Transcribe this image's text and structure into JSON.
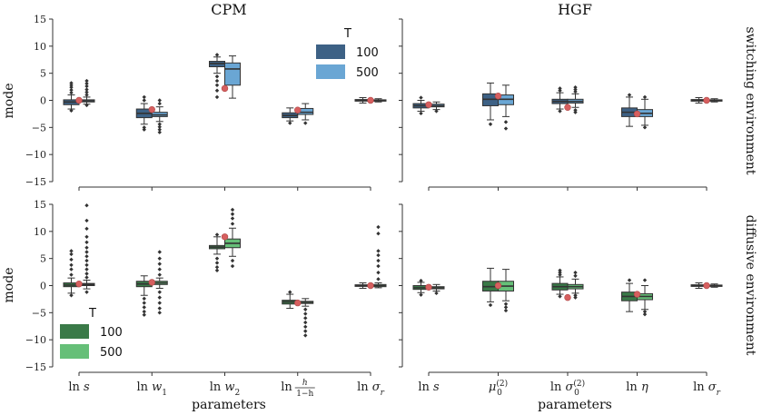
{
  "colors": {
    "switching": {
      "100": "#3d6185",
      "500": "#6aa6d4"
    },
    "diffusive": {
      "100": "#3a7a48",
      "500": "#66bf78"
    },
    "true_value": "#d65f5f",
    "line": "#333333"
  },
  "chart_data": {
    "type": "box",
    "ylabel": "mode",
    "yticks": [
      -15,
      -10,
      -5,
      0,
      5,
      10,
      15
    ],
    "ylim": [
      -15,
      15
    ],
    "xlabel": "parameters",
    "legend_title": "T",
    "legend_labels": [
      "100",
      "500"
    ],
    "row_labels": [
      "switching environment",
      "diffusive environment"
    ],
    "columns": [
      {
        "title": "CPM",
        "params": [
          {
            "label": "ln s"
          },
          {
            "label": "ln w1"
          },
          {
            "label": "ln w2"
          },
          {
            "label": "ln h/(1−h)"
          },
          {
            "label": "ln σr"
          }
        ]
      },
      {
        "title": "HGF",
        "params": [
          {
            "label": "ln s"
          },
          {
            "label": "μ0(2)"
          },
          {
            "label": "ln σ0(2)"
          },
          {
            "label": "ln η"
          },
          {
            "label": "ln σr"
          }
        ]
      }
    ],
    "panels": [
      {
        "row": "switching environment",
        "model": "CPM",
        "palette": "switching",
        "legend": "top-right",
        "groups": [
          {
            "param": "ln s",
            "true": 0,
            "boxes": [
              {
                "T": "100",
                "q1": -0.8,
                "median": -0.3,
                "q3": 0.1,
                "lo": -1.6,
                "hi": 1.0,
                "outliers": [
                  1.4,
                  1.9,
                  2.4,
                  2.8,
                  3.2,
                  -1.9
                ]
              },
              {
                "T": "500",
                "q1": -0.3,
                "median": -0.1,
                "q3": 0.1,
                "lo": -0.7,
                "hi": 0.6,
                "outliers": [
                  1.0,
                  1.5,
                  2.0,
                  2.6,
                  3.1,
                  3.6,
                  -0.9
                ]
              }
            ]
          },
          {
            "param": "ln w1",
            "true": -1.7,
            "boxes": [
              {
                "T": "100",
                "q1": -3.2,
                "median": -2.4,
                "q3": -1.6,
                "lo": -4.4,
                "hi": -0.6,
                "outliers": [
                  -5.0,
                  -5.4,
                  0.0,
                  0.6
                ]
              },
              {
                "T": "500",
                "q1": -3.0,
                "median": -2.7,
                "q3": -2.2,
                "lo": -3.9,
                "hi": -1.2,
                "outliers": [
                  -4.4,
                  -4.9,
                  -5.4,
                  -5.9,
                  -0.6,
                  0.0
                ]
              }
            ]
          },
          {
            "param": "ln w2",
            "true": 2.2,
            "boxes": [
              {
                "T": "100",
                "q1": 6.2,
                "median": 6.8,
                "q3": 7.2,
                "lo": 5.0,
                "hi": 8.0,
                "outliers": [
                  4.4,
                  3.6,
                  2.8,
                  1.8,
                  0.6,
                  8.4
                ]
              },
              {
                "T": "500",
                "q1": 2.8,
                "median": 5.8,
                "q3": 6.9,
                "lo": 0.4,
                "hi": 8.2,
                "outliers": []
              }
            ]
          },
          {
            "param": "ln h/(1−h)",
            "true": -1.8,
            "boxes": [
              {
                "T": "100",
                "q1": -3.2,
                "median": -2.8,
                "q3": -2.3,
                "lo": -3.8,
                "hi": -1.4,
                "outliers": [
                  -4.2
                ]
              },
              {
                "T": "500",
                "q1": -2.6,
                "median": -2.2,
                "q3": -1.5,
                "lo": -3.6,
                "hi": -0.6,
                "outliers": [
                  -4.2
                ]
              }
            ]
          },
          {
            "param": "ln σr",
            "true": 0,
            "boxes": [
              {
                "T": "100",
                "q1": -0.15,
                "median": 0.0,
                "q3": 0.15,
                "lo": -0.5,
                "hi": 0.5,
                "outliers": []
              },
              {
                "T": "500",
                "q1": -0.1,
                "median": 0.0,
                "q3": 0.1,
                "lo": -0.3,
                "hi": 0.3,
                "outliers": []
              }
            ]
          }
        ]
      },
      {
        "row": "switching environment",
        "model": "HGF",
        "palette": "switching",
        "legend": "none",
        "groups": [
          {
            "param": "ln s",
            "true": -0.8,
            "boxes": [
              {
                "T": "100",
                "q1": -1.4,
                "median": -1.0,
                "q3": -0.6,
                "lo": -2.0,
                "hi": 0.0,
                "outliers": [
                  0.5,
                  -2.4
                ]
              },
              {
                "T": "500",
                "q1": -1.2,
                "median": -1.0,
                "q3": -0.7,
                "lo": -1.7,
                "hi": -0.3,
                "outliers": [
                  -2.0
                ]
              }
            ]
          },
          {
            "param": "μ0(2)",
            "true": 0.8,
            "boxes": [
              {
                "T": "100",
                "q1": -1.0,
                "median": 0.2,
                "q3": 1.2,
                "lo": -3.6,
                "hi": 3.2,
                "outliers": [
                  -4.4
                ]
              },
              {
                "T": "500",
                "q1": -0.8,
                "median": 0.2,
                "q3": 1.0,
                "lo": -3.0,
                "hi": 2.8,
                "outliers": [
                  -4.0,
                  -5.2
                ]
              }
            ]
          },
          {
            "param": "ln σ0(2)",
            "true": -1.3,
            "boxes": [
              {
                "T": "100",
                "q1": -0.6,
                "median": -0.2,
                "q3": 0.2,
                "lo": -1.6,
                "hi": 1.4,
                "outliers": [
                  1.8,
                  2.2,
                  -2.0
                ]
              },
              {
                "T": "500",
                "q1": -0.5,
                "median": -0.2,
                "q3": 0.2,
                "lo": -1.3,
                "hi": 1.2,
                "outliers": [
                  1.6,
                  2.0,
                  2.4,
                  -1.8,
                  -2.2
                ]
              }
            ]
          },
          {
            "param": "ln η",
            "true": -2.5,
            "boxes": [
              {
                "T": "100",
                "q1": -3.0,
                "median": -2.2,
                "q3": -1.4,
                "lo": -4.8,
                "hi": 0.6,
                "outliers": [
                  1.0
                ]
              },
              {
                "T": "500",
                "q1": -3.0,
                "median": -2.4,
                "q3": -1.7,
                "lo": -4.6,
                "hi": 0.2,
                "outliers": [
                  -5.0,
                  0.6
                ]
              }
            ]
          },
          {
            "param": "ln σr",
            "true": 0,
            "boxes": [
              {
                "T": "100",
                "q1": -0.15,
                "median": 0.0,
                "q3": 0.15,
                "lo": -0.5,
                "hi": 0.5,
                "outliers": []
              },
              {
                "T": "500",
                "q1": -0.1,
                "median": 0.0,
                "q3": 0.1,
                "lo": -0.3,
                "hi": 0.3,
                "outliers": []
              }
            ]
          }
        ]
      },
      {
        "row": "diffusive environment",
        "model": "CPM",
        "palette": "diffusive",
        "legend": "bottom-left",
        "groups": [
          {
            "param": "ln s",
            "true": 0.3,
            "boxes": [
              {
                "T": "100",
                "q1": -0.2,
                "median": 0.1,
                "q3": 0.5,
                "lo": -1.4,
                "hi": 1.4,
                "outliers": [
                  2.0,
                  3.0,
                  3.8,
                  4.8,
                  5.8,
                  6.4,
                  -1.8
                ]
              },
              {
                "T": "500",
                "q1": 0.0,
                "median": 0.2,
                "q3": 0.4,
                "lo": -0.6,
                "hi": 1.0,
                "outliers": [
                  1.5,
                  2.2,
                  3.0,
                  3.8,
                  4.6,
                  5.4,
                  6.2,
                  7.0,
                  8.0,
                  9.0,
                  10.5,
                  12.0,
                  14.8,
                  -1.2
                ]
              }
            ]
          },
          {
            "param": "ln w1",
            "true": 0.6,
            "boxes": [
              {
                "T": "100",
                "q1": -0.2,
                "median": 0.3,
                "q3": 0.8,
                "lo": -1.8,
                "hi": 1.8,
                "outliers": [
                  -2.4,
                  -3.2,
                  -4.0,
                  -4.8,
                  -5.4
                ]
              },
              {
                "T": "500",
                "q1": 0.2,
                "median": 0.5,
                "q3": 0.8,
                "lo": -0.5,
                "hi": 1.4,
                "outliers": [
                  2.0,
                  3.0,
                  4.0,
                  5.0,
                  6.2,
                  -1.2,
                  -2.2,
                  -3.2,
                  -4.2,
                  -5.0
                ]
              }
            ]
          },
          {
            "param": "ln w2",
            "true": 9.0,
            "boxes": [
              {
                "T": "100",
                "q1": 6.8,
                "median": 7.1,
                "q3": 7.4,
                "lo": 5.8,
                "hi": 9.0,
                "outliers": [
                  5.0,
                  4.2,
                  3.4,
                  2.8,
                  9.4
                ]
              },
              {
                "T": "500",
                "q1": 7.0,
                "median": 7.8,
                "q3": 8.6,
                "lo": 5.4,
                "hi": 10.6,
                "outliers": [
                  11.4,
                  12.4,
                  13.2,
                  14.0,
                  4.6,
                  3.6
                ]
              }
            ]
          },
          {
            "param": "ln h/(1−h)",
            "true": -3.2,
            "boxes": [
              {
                "T": "100",
                "q1": -3.4,
                "median": -3.0,
                "q3": -2.7,
                "lo": -4.2,
                "hi": -1.6,
                "outliers": [
                  -1.2
                ]
              },
              {
                "T": "500",
                "q1": -3.3,
                "median": -3.1,
                "q3": -2.9,
                "lo": -3.8,
                "hi": -2.4,
                "outliers": [
                  -4.4,
                  -5.2,
                  -6.0,
                  -6.8,
                  -7.6,
                  -8.4,
                  -9.2
                ]
              }
            ]
          },
          {
            "param": "ln σr",
            "true": 0,
            "boxes": [
              {
                "T": "100",
                "q1": -0.15,
                "median": 0.0,
                "q3": 0.15,
                "lo": -0.5,
                "hi": 0.5,
                "outliers": []
              },
              {
                "T": "500",
                "q1": -0.2,
                "median": 0.0,
                "q3": 0.2,
                "lo": -0.4,
                "hi": 0.5,
                "outliers": [
                  1.2,
                  2.4,
                  3.6,
                  4.6,
                  5.6,
                  6.4,
                  9.6,
                  10.8
                ]
              }
            ]
          }
        ]
      },
      {
        "row": "diffusive environment",
        "model": "HGF",
        "palette": "diffusive",
        "legend": "none",
        "groups": [
          {
            "param": "ln s",
            "true": -0.3,
            "boxes": [
              {
                "T": "100",
                "q1": -0.7,
                "median": -0.4,
                "q3": 0.0,
                "lo": -1.3,
                "hi": 0.6,
                "outliers": [
                  0.9,
                  -1.7
                ]
              },
              {
                "T": "500",
                "q1": -0.6,
                "median": -0.4,
                "q3": -0.2,
                "lo": -1.0,
                "hi": 0.2,
                "outliers": [
                  -1.4
                ]
              }
            ]
          },
          {
            "param": "μ0(2)",
            "true": 0.0,
            "boxes": [
              {
                "T": "100",
                "q1": -1.0,
                "median": -0.2,
                "q3": 0.8,
                "lo": -3.0,
                "hi": 3.2,
                "outliers": [
                  -3.6
                ]
              },
              {
                "T": "500",
                "q1": -1.0,
                "median": -0.1,
                "q3": 0.8,
                "lo": -2.8,
                "hi": 3.0,
                "outliers": [
                  -3.4,
                  -4.0,
                  -4.6
                ]
              }
            ]
          },
          {
            "param": "ln σ0(2)",
            "true": -2.2,
            "boxes": [
              {
                "T": "100",
                "q1": -0.8,
                "median": -0.2,
                "q3": 0.4,
                "lo": -1.6,
                "hi": 1.6,
                "outliers": [
                  2.0,
                  2.4,
                  2.8,
                  -2.0
                ]
              },
              {
                "T": "500",
                "q1": -0.6,
                "median": -0.2,
                "q3": 0.2,
                "lo": -1.4,
                "hi": 1.2,
                "outliers": [
                  1.8,
                  2.4,
                  -1.8,
                  -2.2
                ]
              }
            ]
          },
          {
            "param": "ln η",
            "true": -1.6,
            "boxes": [
              {
                "T": "100",
                "q1": -2.8,
                "median": -2.0,
                "q3": -1.2,
                "lo": -4.8,
                "hi": 0.4,
                "outliers": [
                  1.0
                ]
              },
              {
                "T": "500",
                "q1": -2.6,
                "median": -2.0,
                "q3": -1.5,
                "lo": -4.4,
                "hi": 0.0,
                "outliers": [
                  -4.8,
                  -5.3,
                  1.0
                ]
              }
            ]
          },
          {
            "param": "ln σr",
            "true": 0,
            "boxes": [
              {
                "T": "100",
                "q1": -0.15,
                "median": 0.0,
                "q3": 0.15,
                "lo": -0.5,
                "hi": 0.5,
                "outliers": []
              },
              {
                "T": "500",
                "q1": -0.1,
                "median": 0.0,
                "q3": 0.1,
                "lo": -0.3,
                "hi": 0.3,
                "outliers": []
              }
            ]
          }
        ]
      }
    ]
  }
}
